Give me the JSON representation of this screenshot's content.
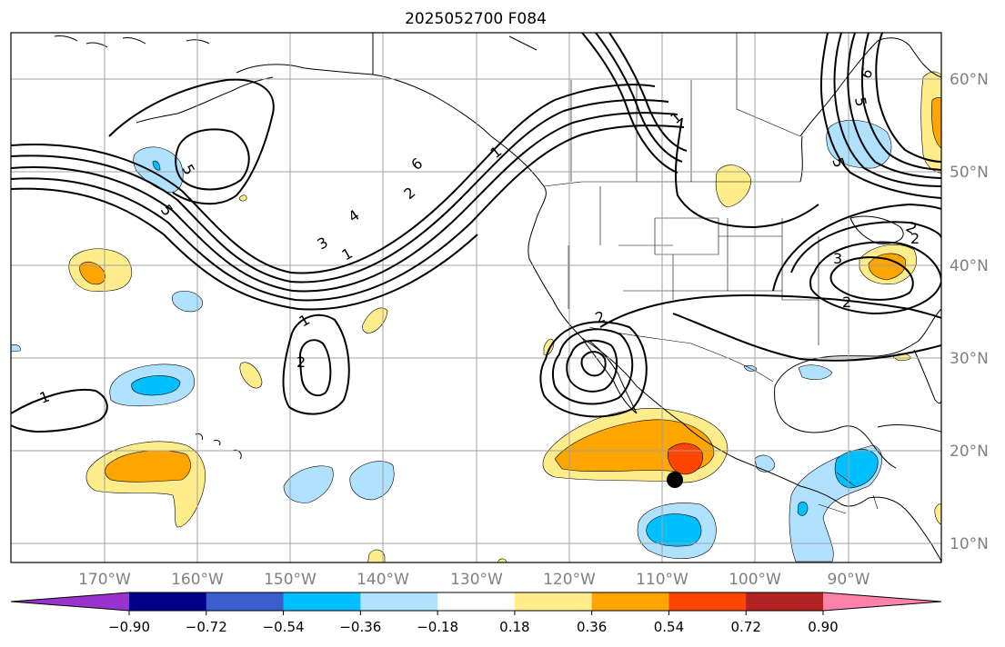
{
  "title": "2025052700 F084",
  "map": {
    "lat_labels": [
      "60°N",
      "50°N",
      "40°N",
      "30°N",
      "20°N",
      "10°N"
    ],
    "lon_labels": [
      "170°W",
      "160°W",
      "150°W",
      "140°W",
      "130°W",
      "120°W",
      "110°W",
      "100°W",
      "90°W"
    ]
  },
  "contour_labels": [
    "1",
    "2",
    "3",
    "4",
    "5",
    "6",
    "5",
    "5",
    "2",
    "2",
    "1",
    "1",
    "2",
    "1",
    "6",
    "5",
    "3",
    "2",
    "2",
    "1"
  ],
  "colorbar": {
    "colors": [
      "#9a32cd",
      "#00008b",
      "#3a5fcd",
      "#00bfff",
      "#b0e2ff",
      "#ffffff",
      "#ffec8b",
      "#ffa500",
      "#ff4500",
      "#b22222",
      "#ff82ab"
    ],
    "tick_labels": [
      "−0.90",
      "−0.72",
      "−0.54",
      "−0.36",
      "−0.18",
      "0.18",
      "0.36",
      "0.54",
      "0.72",
      "0.90"
    ]
  },
  "colors": {
    "grid": "#a0a0a0",
    "coast": "#000000",
    "axis_label": "#808080"
  }
}
